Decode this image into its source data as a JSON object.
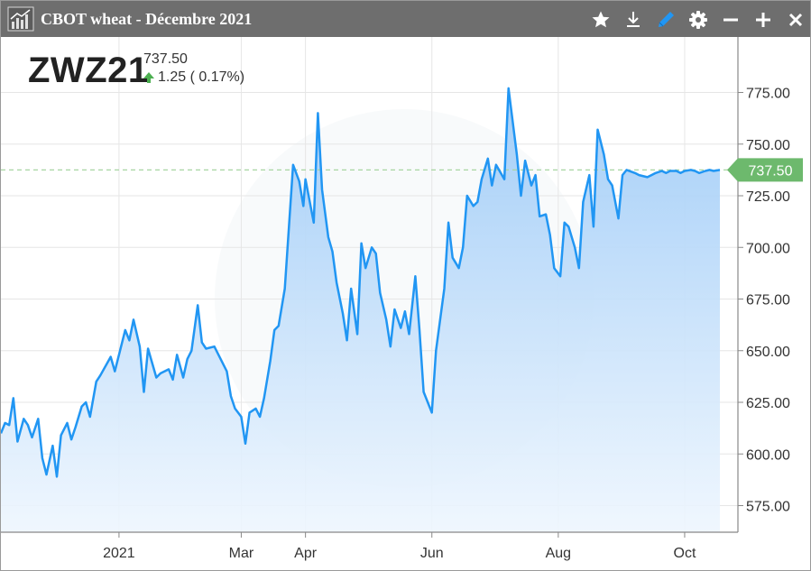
{
  "window": {
    "title": "CBOT wheat - Décembre 2021",
    "buttons": [
      {
        "name": "favorite-star-icon"
      },
      {
        "name": "download-icon"
      },
      {
        "name": "draw-pen-icon"
      },
      {
        "name": "settings-gear-icon"
      },
      {
        "name": "minimize-icon"
      },
      {
        "name": "add-icon"
      },
      {
        "name": "close-icon"
      }
    ]
  },
  "quote": {
    "symbol": "ZWZ21",
    "price": "737.50",
    "change": "1.25 ( 0.17%)",
    "direction": "up",
    "up_color": "#4caf50"
  },
  "chart_data": {
    "type": "area",
    "title": "",
    "xlabel": "",
    "ylabel": "",
    "ylim": [
      565,
      795
    ],
    "y_ticks": [
      "575.00",
      "600.00",
      "625.00",
      "650.00",
      "675.00",
      "700.00",
      "725.00",
      "750.00",
      "775.00"
    ],
    "x_ticks": [
      {
        "label": "2021",
        "date": "2021-01-01"
      },
      {
        "label": "Mar",
        "date": "2021-03-01"
      },
      {
        "label": "Apr",
        "date": "2021-04-01"
      },
      {
        "label": "Jun",
        "date": "2021-06-01"
      },
      {
        "label": "Aug",
        "date": "2021-08-01"
      },
      {
        "label": "Oct",
        "date": "2021-10-01"
      }
    ],
    "last_price": 737.5,
    "last_price_label": "737.50",
    "line_color": "#2196f3",
    "reference_line_color": "#a8d5a2",
    "price_tag_color": "#6db96d",
    "grid": true,
    "series": [
      {
        "x": [
          "2020-11-05",
          "2020-11-07",
          "2020-11-09",
          "2020-11-11",
          "2020-11-13",
          "2020-11-16",
          "2020-11-18",
          "2020-11-20",
          "2020-11-23",
          "2020-11-25",
          "2020-11-27",
          "2020-11-30",
          "2020-12-02",
          "2020-12-04",
          "2020-12-07",
          "2020-12-09",
          "2020-12-11",
          "2020-12-14",
          "2020-12-16",
          "2020-12-18",
          "2020-12-21",
          "2020-12-23",
          "2020-12-28",
          "2020-12-30",
          "2021-01-04",
          "2021-01-06",
          "2021-01-08",
          "2021-01-11",
          "2021-01-13",
          "2021-01-15",
          "2021-01-19",
          "2021-01-21",
          "2021-01-25",
          "2021-01-27",
          "2021-01-29",
          "2021-02-01",
          "2021-02-03",
          "2021-02-05",
          "2021-02-08",
          "2021-02-10",
          "2021-02-12",
          "2021-02-16",
          "2021-02-18",
          "2021-02-22",
          "2021-02-24",
          "2021-02-26",
          "2021-03-01",
          "2021-03-03",
          "2021-03-05",
          "2021-03-08",
          "2021-03-10",
          "2021-03-12",
          "2021-03-15",
          "2021-03-17",
          "2021-03-19",
          "2021-03-22",
          "2021-03-24",
          "2021-03-26",
          "2021-03-29",
          "2021-03-31",
          "2021-04-01",
          "2021-04-05",
          "2021-04-07",
          "2021-04-09",
          "2021-04-12",
          "2021-04-14",
          "2021-04-16",
          "2021-04-19",
          "2021-04-21",
          "2021-04-23",
          "2021-04-26",
          "2021-04-28",
          "2021-04-30",
          "2021-05-03",
          "2021-05-05",
          "2021-05-07",
          "2021-05-10",
          "2021-05-12",
          "2021-05-14",
          "2021-05-17",
          "2021-05-19",
          "2021-05-21",
          "2021-05-24",
          "2021-05-26",
          "2021-05-28",
          "2021-06-01",
          "2021-06-03",
          "2021-06-07",
          "2021-06-09",
          "2021-06-11",
          "2021-06-14",
          "2021-06-16",
          "2021-06-18",
          "2021-06-21",
          "2021-06-23",
          "2021-06-25",
          "2021-06-28",
          "2021-06-30",
          "2021-07-02",
          "2021-07-06",
          "2021-07-08",
          "2021-07-12",
          "2021-07-14",
          "2021-07-16",
          "2021-07-19",
          "2021-07-21",
          "2021-07-23",
          "2021-07-26",
          "2021-07-28",
          "2021-07-30",
          "2021-08-02",
          "2021-08-04",
          "2021-08-06",
          "2021-08-09",
          "2021-08-11",
          "2021-08-13",
          "2021-08-16",
          "2021-08-18",
          "2021-08-20",
          "2021-08-23",
          "2021-08-25",
          "2021-08-27",
          "2021-08-30",
          "2021-09-01",
          "2021-09-03",
          "2021-09-07",
          "2021-09-09",
          "2021-09-13",
          "2021-09-15",
          "2021-09-17",
          "2021-09-20",
          "2021-09-22",
          "2021-09-24",
          "2021-09-27",
          "2021-09-29",
          "2021-10-01",
          "2021-10-04",
          "2021-10-06",
          "2021-10-08",
          "2021-10-11",
          "2021-10-13",
          "2021-10-15",
          "2021-10-18"
        ],
        "values": [
          610,
          615,
          614,
          627,
          606,
          617,
          614,
          608,
          617,
          598,
          590,
          604,
          589,
          609,
          615,
          607,
          613,
          623,
          625,
          618,
          635,
          638,
          647,
          640,
          660,
          655,
          665,
          652,
          630,
          651,
          637,
          639,
          641,
          636,
          648,
          637,
          646,
          650,
          672,
          654,
          651,
          652,
          648,
          640,
          628,
          622,
          618,
          605,
          620,
          622,
          618,
          627,
          645,
          660,
          662,
          680,
          710,
          740,
          732,
          720,
          733,
          712,
          765,
          728,
          705,
          698,
          683,
          668,
          655,
          680,
          658,
          702,
          690,
          700,
          697,
          678,
          665,
          652,
          670,
          661,
          669,
          658,
          686,
          660,
          630,
          620,
          650,
          680,
          712,
          695,
          690,
          700,
          725,
          720,
          722,
          733,
          743,
          730,
          740,
          733,
          777,
          745,
          725,
          742,
          730,
          735,
          715,
          716,
          706,
          690,
          686,
          712,
          710,
          700,
          690,
          722,
          735,
          710,
          757,
          745,
          733,
          730,
          714,
          735,
          737.5,
          736,
          735,
          734,
          735,
          736,
          737,
          736,
          737,
          737,
          736,
          737,
          737.5,
          737,
          736,
          737,
          737.5,
          737,
          737.5
        ]
      }
    ]
  }
}
